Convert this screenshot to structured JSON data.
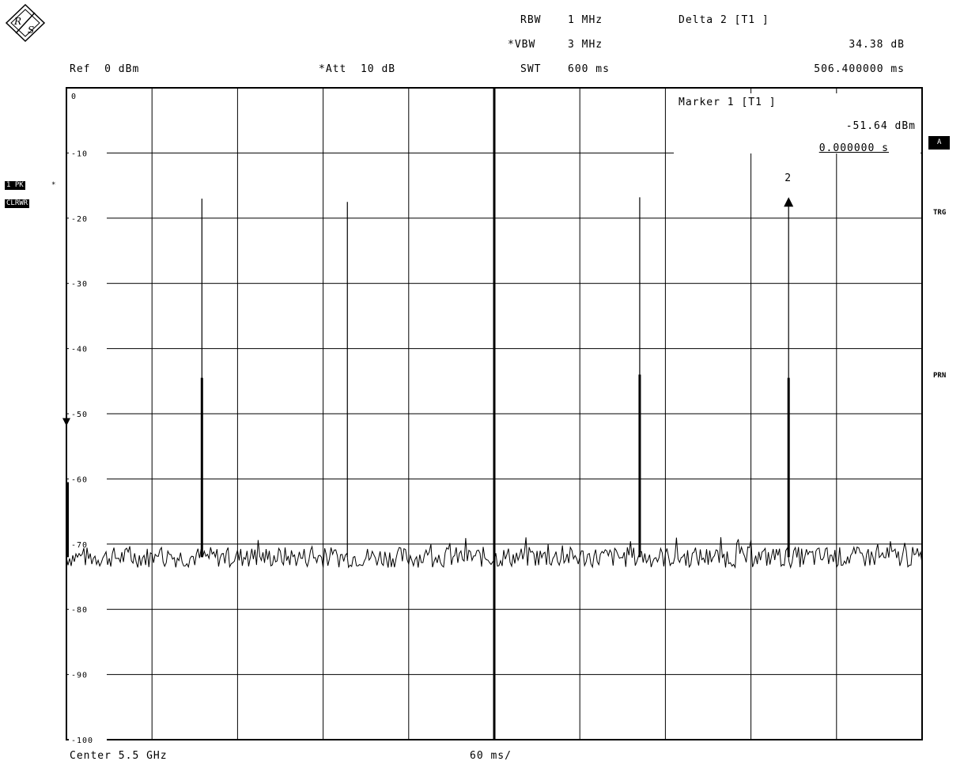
{
  "header": {
    "rbw_label": "RBW",
    "rbw_value": "1 MHz",
    "vbw_label": "*VBW",
    "vbw_value": "3 MHz",
    "swt_label": "SWT",
    "swt_value": "600 ms",
    "delta_title": "Delta 2 [T1 ]",
    "delta_level": "34.38 dB",
    "delta_time": "506.400000 ms",
    "ref": "Ref  0 dBm",
    "att": "*Att  10 dB"
  },
  "marker_box": {
    "title": "Marker 1 [T1 ]",
    "level": "-51.64 dBm",
    "time": "0.000000 s"
  },
  "trace_tags": {
    "trace": "1 PK",
    "trace_star": "*",
    "mode": "CLRWR"
  },
  "side_labels": {
    "a": "A",
    "trg": "TRG",
    "prn": "PRN"
  },
  "footer": {
    "center": "Center 5.5 GHz",
    "span": "60 ms/"
  },
  "marker2_label": "2",
  "chart_data": {
    "type": "line",
    "x_unit": "ms",
    "y_unit": "dBm",
    "xlim": [
      0,
      600
    ],
    "ylim": [
      -100,
      0
    ],
    "grid": true,
    "y_ticks": [
      "0",
      "-10",
      "-20",
      "-30",
      "-40",
      "-50",
      "-60",
      "-70",
      "-80",
      "-90",
      "-100"
    ],
    "noise_floor_dbm": -72,
    "pulses": [
      {
        "x": 95.0,
        "peak": -17.0,
        "shoulder": -44.5
      },
      {
        "x": 197.0,
        "peak": -17.5,
        "shoulder": -72.0
      },
      {
        "x": 402.0,
        "peak": -16.8,
        "shoulder": -44.0
      },
      {
        "x": 506.4,
        "peak": -17.3,
        "shoulder": -44.5
      }
    ],
    "markers": [
      {
        "name": "1",
        "x": 0.0,
        "y": -51.64
      },
      {
        "name": "2",
        "x": 506.4,
        "y": -17.26
      }
    ]
  }
}
